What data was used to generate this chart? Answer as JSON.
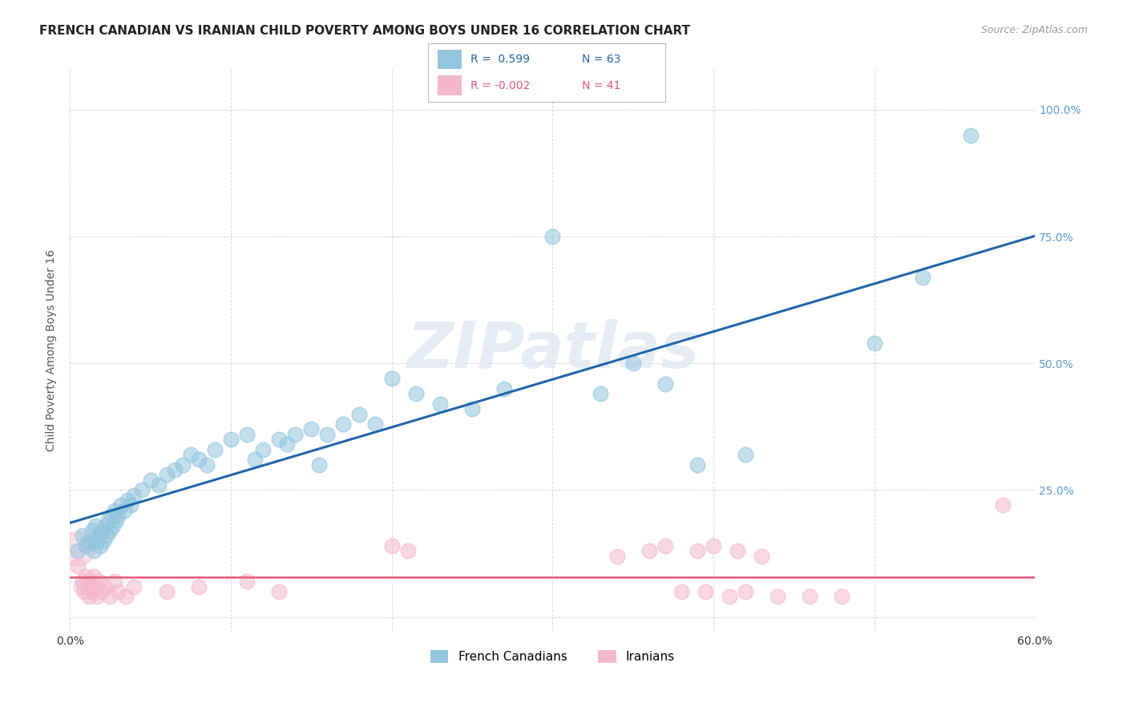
{
  "title": "FRENCH CANADIAN VS IRANIAN CHILD POVERTY AMONG BOYS UNDER 16 CORRELATION CHART",
  "source": "Source: ZipAtlas.com",
  "ylabel": "Child Poverty Among Boys Under 16",
  "xlim": [
    0.0,
    0.6
  ],
  "ylim": [
    -0.03,
    1.08
  ],
  "background_color": "#ffffff",
  "blue_color": "#92c5de",
  "pink_color": "#f4b8cc",
  "blue_line_color": "#2166ac",
  "pink_line_color": "#e8567a",
  "R_blue": 0.599,
  "N_blue": 63,
  "R_pink": -0.002,
  "N_pink": 41,
  "legend_label_blue": "French Canadians",
  "legend_label_pink": "Iranians",
  "right_ytick_color": "#5b9bd5",
  "blue_x": [
    0.005,
    0.008,
    0.01,
    0.012,
    0.014,
    0.015,
    0.016,
    0.017,
    0.018,
    0.019,
    0.02,
    0.021,
    0.022,
    0.023,
    0.024,
    0.025,
    0.026,
    0.027,
    0.028,
    0.029,
    0.03,
    0.032,
    0.034,
    0.036,
    0.038,
    0.04,
    0.045,
    0.05,
    0.055,
    0.06,
    0.065,
    0.07,
    0.075,
    0.08,
    0.085,
    0.09,
    0.1,
    0.11,
    0.115,
    0.12,
    0.13,
    0.135,
    0.14,
    0.15,
    0.155,
    0.16,
    0.17,
    0.18,
    0.19,
    0.2,
    0.215,
    0.23,
    0.25,
    0.27,
    0.3,
    0.33,
    0.35,
    0.37,
    0.39,
    0.42,
    0.5,
    0.53,
    0.56
  ],
  "blue_y": [
    0.13,
    0.16,
    0.14,
    0.15,
    0.17,
    0.13,
    0.18,
    0.15,
    0.16,
    0.14,
    0.17,
    0.15,
    0.18,
    0.16,
    0.19,
    0.17,
    0.2,
    0.18,
    0.21,
    0.19,
    0.2,
    0.22,
    0.21,
    0.23,
    0.22,
    0.24,
    0.25,
    0.27,
    0.26,
    0.28,
    0.29,
    0.3,
    0.32,
    0.31,
    0.3,
    0.33,
    0.35,
    0.36,
    0.31,
    0.33,
    0.35,
    0.34,
    0.36,
    0.37,
    0.3,
    0.36,
    0.38,
    0.4,
    0.38,
    0.47,
    0.44,
    0.42,
    0.41,
    0.45,
    0.75,
    0.44,
    0.5,
    0.46,
    0.3,
    0.32,
    0.54,
    0.67,
    0.95
  ],
  "pink_x": [
    0.005,
    0.007,
    0.008,
    0.009,
    0.01,
    0.011,
    0.012,
    0.013,
    0.014,
    0.015,
    0.016,
    0.017,
    0.018,
    0.02,
    0.022,
    0.025,
    0.028,
    0.03,
    0.035,
    0.04,
    0.06,
    0.08,
    0.11,
    0.13,
    0.2,
    0.21,
    0.34,
    0.36,
    0.37,
    0.38,
    0.39,
    0.395,
    0.4,
    0.41,
    0.415,
    0.42,
    0.43,
    0.44,
    0.46,
    0.48,
    0.58
  ],
  "pink_y": [
    0.1,
    0.06,
    0.07,
    0.05,
    0.08,
    0.06,
    0.04,
    0.07,
    0.05,
    0.08,
    0.06,
    0.04,
    0.07,
    0.05,
    0.06,
    0.04,
    0.07,
    0.05,
    0.04,
    0.06,
    0.05,
    0.06,
    0.07,
    0.05,
    0.14,
    0.13,
    0.12,
    0.13,
    0.14,
    0.05,
    0.13,
    0.05,
    0.14,
    0.04,
    0.13,
    0.05,
    0.12,
    0.04,
    0.04,
    0.04,
    0.22
  ],
  "pink_large_x": [
    0.005
  ],
  "pink_large_y": [
    0.14
  ],
  "grid_color": "#cccccc",
  "watermark_color": "#e0e8f0",
  "watermark_alpha": 0.8
}
